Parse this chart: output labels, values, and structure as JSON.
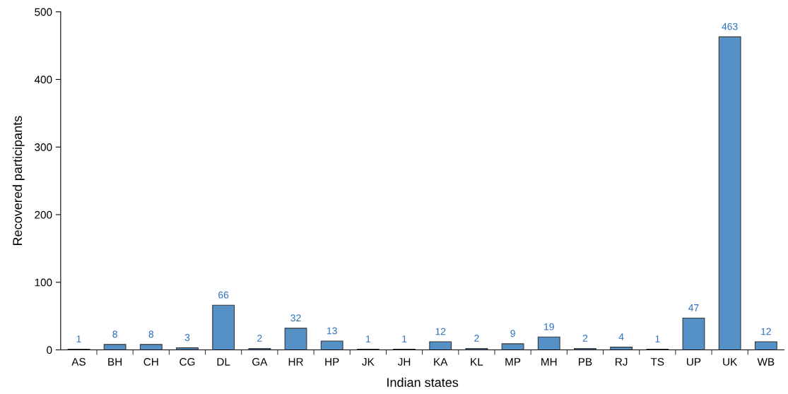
{
  "chart_data": {
    "type": "bar",
    "xlabel": "Indian states",
    "ylabel": "Recovered participants",
    "categories": [
      "AS",
      "BH",
      "CH",
      "CG",
      "DL",
      "GA",
      "HR",
      "HP",
      "JK",
      "JH",
      "KA",
      "KL",
      "MP",
      "MH",
      "PB",
      "RJ",
      "TS",
      "UP",
      "UK",
      "WB"
    ],
    "values": [
      1,
      8,
      8,
      3,
      66,
      2,
      32,
      13,
      1,
      1,
      12,
      2,
      9,
      19,
      2,
      4,
      1,
      47,
      463,
      12
    ],
    "color": "#5591c6",
    "ylim": [
      0,
      500
    ],
    "yticks": [
      0,
      100,
      200,
      300,
      400,
      500
    ],
    "data_labels": true,
    "grid": false
  }
}
